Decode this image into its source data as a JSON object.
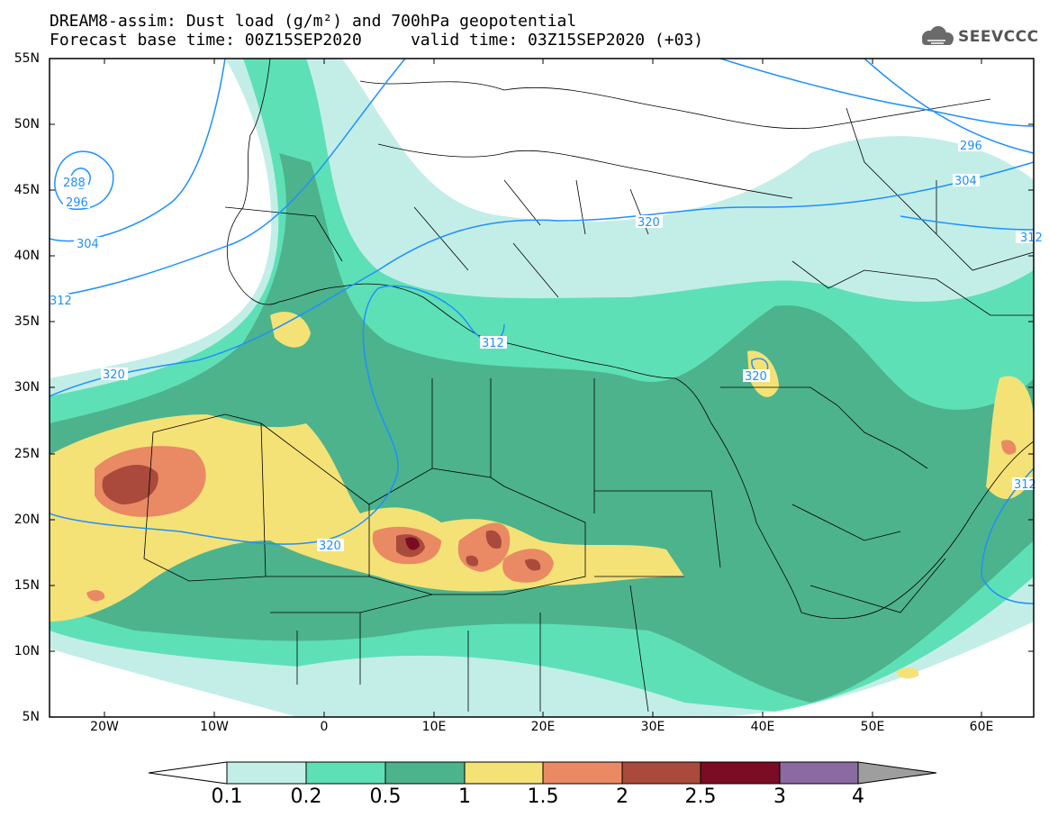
{
  "header": {
    "line1": "DREAM8-assim: Dust load (g/m²) and 700hPa geopotential",
    "line2": "Forecast base time: 00Z15SEP2020     valid time: 03Z15SEP2020 (+03)"
  },
  "logo": {
    "text": "SEEVCCC",
    "icon": "cloud-icon"
  },
  "axes": {
    "lat_labels": [
      "55N",
      "50N",
      "45N",
      "40N",
      "35N",
      "30N",
      "25N",
      "20N",
      "15N",
      "10N",
      "5N"
    ],
    "lon_labels": [
      "20W",
      "10W",
      "0",
      "10E",
      "20E",
      "30E",
      "40E",
      "50E",
      "60E"
    ]
  },
  "contour_labels": [
    "288",
    "296",
    "304",
    "312",
    "320",
    "312",
    "320",
    "320",
    "296",
    "304",
    "312",
    "320",
    "312"
  ],
  "colorbar": {
    "ticks": [
      "0.1",
      "0.2",
      "0.5",
      "1",
      "1.5",
      "2",
      "2.5",
      "3",
      "4"
    ],
    "colors": [
      "#c3eee8",
      "#5ee0b6",
      "#4db38c",
      "#f4e276",
      "#e98a64",
      "#a94a3c",
      "#7a0c24",
      "#8a6aa0",
      "#9e9e9e"
    ]
  },
  "colors": {
    "contour": "#1e90ff",
    "borders": "#000000",
    "background": "#ffffff"
  }
}
